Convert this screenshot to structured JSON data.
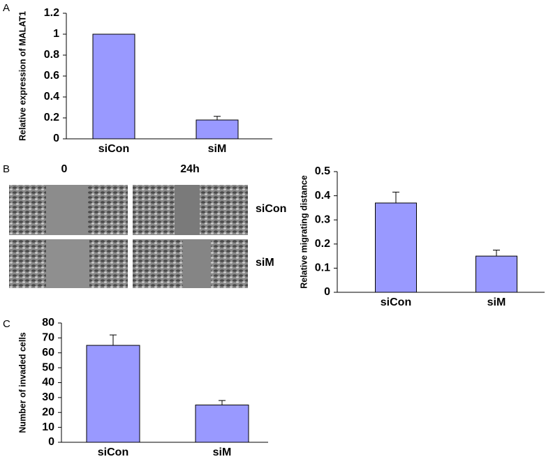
{
  "panels": [
    "A",
    "B",
    "C"
  ],
  "images": {
    "columns": [
      "0",
      "24h"
    ],
    "rows": [
      "siCon",
      "siM"
    ]
  },
  "chart_data": [
    {
      "type": "bar",
      "y_label": "Relative expression of MALAT1",
      "categories": [
        "siCon",
        "siM"
      ],
      "values": [
        1,
        0.18
      ],
      "errors": [
        0,
        0.035
      ],
      "color": "#9999ff",
      "ylim": [
        0,
        1.2
      ],
      "yticks": [
        0,
        0.2,
        0.4,
        0.6,
        0.8,
        1,
        1.2
      ]
    },
    {
      "type": "bar",
      "y_label": "Relative migrating distance",
      "categories": [
        "siCon",
        "siM"
      ],
      "values": [
        0.37,
        0.15
      ],
      "errors": [
        0.045,
        0.025
      ],
      "color": "#9999ff",
      "ylim": [
        0,
        0.5
      ],
      "yticks": [
        0,
        0.1,
        0.2,
        0.3,
        0.4,
        0.5
      ]
    },
    {
      "type": "bar",
      "y_label": "Number of invaded cells",
      "categories": [
        "siCon",
        "siM"
      ],
      "values": [
        65,
        25
      ],
      "errors": [
        7,
        3
      ],
      "color": "#9999ff",
      "ylim": [
        0,
        80
      ],
      "yticks": [
        0,
        10,
        20,
        30,
        40,
        50,
        60,
        70,
        80
      ]
    }
  ]
}
